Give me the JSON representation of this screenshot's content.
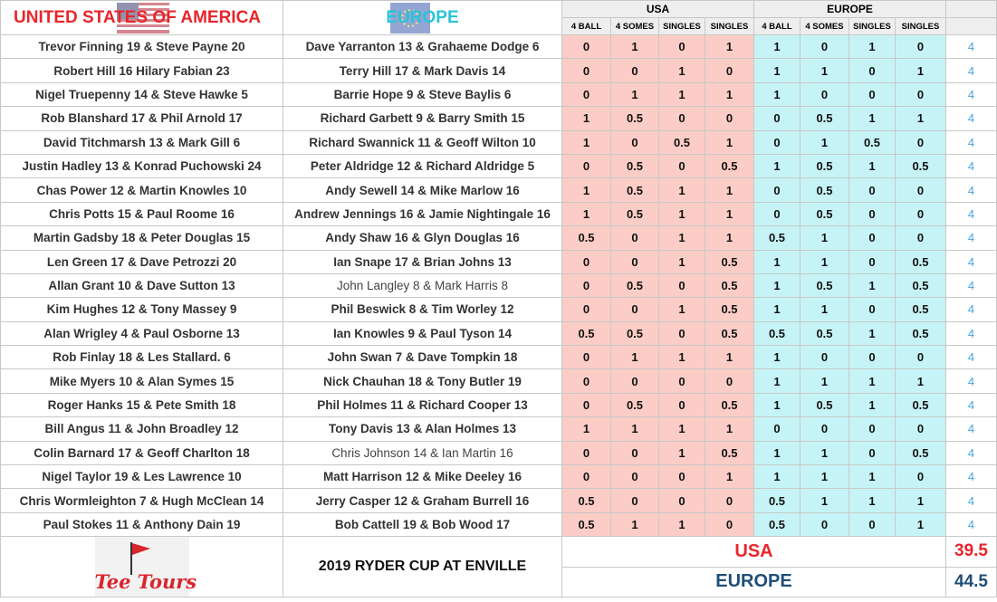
{
  "header": {
    "usa_title": "UNITED STATES OF AMERICA",
    "europe_title": "EUROPE",
    "usa_section": "USA",
    "europe_section": "EUROPE",
    "columns": [
      "4 BALL",
      "4 SOMES",
      "SINGLES",
      "SINGLES"
    ]
  },
  "colors": {
    "usa": "#e8262b",
    "europe_text": "#1f4e79",
    "usa_cell": "#fbcdc6",
    "europe_cell": "#c6f4f6",
    "total": "#4aa3df"
  },
  "icons": {
    "usa_flag": "usa-flag-icon",
    "europe_flag": "europe-flag-icon",
    "logo": "tee-tours-logo"
  },
  "rows": [
    {
      "usa": "Trevor Finning 19 & Steve Payne 20",
      "europe": "Dave Yarranton 13 & Grahaeme Dodge 6",
      "us": [
        "0",
        "1",
        "0",
        "1"
      ],
      "eu": [
        "1",
        "0",
        "1",
        "0"
      ],
      "total": "4"
    },
    {
      "usa": "Robert Hill 16 Hilary Fabian 23",
      "europe": "Terry Hill 17 & Mark Davis 14",
      "us": [
        "0",
        "0",
        "1",
        "0"
      ],
      "eu": [
        "1",
        "1",
        "0",
        "1"
      ],
      "total": "4"
    },
    {
      "usa": "Nigel Truepenny 14 & Steve Hawke 5",
      "europe": "Barrie Hope 9 & Steve Baylis 6",
      "us": [
        "0",
        "1",
        "1",
        "1"
      ],
      "eu": [
        "1",
        "0",
        "0",
        "0"
      ],
      "total": "4"
    },
    {
      "usa": "Rob Blanshard 17 & Phil Arnold 17",
      "europe": "Richard Garbett 9 & Barry Smith 15",
      "us": [
        "1",
        "0.5",
        "0",
        "0"
      ],
      "eu": [
        "0",
        "0.5",
        "1",
        "1"
      ],
      "total": "4"
    },
    {
      "usa": "David Titchmarsh 13 & Mark Gill 6",
      "europe": "Richard Swannick 11 & Geoff Wilton 10",
      "us": [
        "1",
        "0",
        "0.5",
        "1"
      ],
      "eu": [
        "0",
        "1",
        "0.5",
        "0"
      ],
      "total": "4"
    },
    {
      "usa": "Justin Hadley 13 & Konrad Puchowski 24",
      "europe": "Peter Aldridge 12 & Richard Aldridge 5",
      "us": [
        "0",
        "0.5",
        "0",
        "0.5"
      ],
      "eu": [
        "1",
        "0.5",
        "1",
        "0.5"
      ],
      "total": "4"
    },
    {
      "usa": "Chas Power 12 & Martin Knowles 10",
      "europe": "Andy Sewell 14 & Mike Marlow 16",
      "us": [
        "1",
        "0.5",
        "1",
        "1"
      ],
      "eu": [
        "0",
        "0.5",
        "0",
        "0"
      ],
      "total": "4"
    },
    {
      "usa": "Chris Potts 15 & Paul Roome 16",
      "europe": "Andrew Jennings 16 & Jamie Nightingale 16",
      "us": [
        "1",
        "0.5",
        "1",
        "1"
      ],
      "eu": [
        "0",
        "0.5",
        "0",
        "0"
      ],
      "total": "4"
    },
    {
      "usa": "Martin Gadsby 18 & Peter Douglas 15",
      "europe": "Andy Shaw 16 & Glyn Douglas 16",
      "us": [
        "0.5",
        "0",
        "1",
        "1"
      ],
      "eu": [
        "0.5",
        "1",
        "0",
        "0"
      ],
      "total": "4"
    },
    {
      "usa": "Len Green 17 & Dave Petrozzi 20",
      "europe": "Ian Snape 17 & Brian Johns 13",
      "us": [
        "0",
        "0",
        "1",
        "0.5"
      ],
      "eu": [
        "1",
        "1",
        "0",
        "0.5"
      ],
      "total": "4"
    },
    {
      "usa": "Allan Grant 10 & Dave Sutton 13",
      "europe": "John Langley 8 & Mark Harris 8",
      "us": [
        "0",
        "0.5",
        "0",
        "0.5"
      ],
      "eu": [
        "1",
        "0.5",
        "1",
        "0.5"
      ],
      "total": "4",
      "light": true
    },
    {
      "usa": "Kim Hughes 12 & Tony Massey 9",
      "europe": "Phil Beswick 8 & Tim Worley 12",
      "us": [
        "0",
        "0",
        "1",
        "0.5"
      ],
      "eu": [
        "1",
        "1",
        "0",
        "0.5"
      ],
      "total": "4"
    },
    {
      "usa": "Alan Wrigley 4 & Paul Osborne 13",
      "europe": "Ian Knowles 9 & Paul Tyson 14",
      "us": [
        "0.5",
        "0.5",
        "0",
        "0.5"
      ],
      "eu": [
        "0.5",
        "0.5",
        "1",
        "0.5"
      ],
      "total": "4"
    },
    {
      "usa": "Rob Finlay 18 & Les Stallard. 6",
      "europe": "John Swan 7 & Dave Tompkin 18",
      "us": [
        "0",
        "1",
        "1",
        "1"
      ],
      "eu": [
        "1",
        "0",
        "0",
        "0"
      ],
      "total": "4"
    },
    {
      "usa": "Mike Myers 10 & Alan Symes 15",
      "europe": "Nick Chauhan 18 & Tony Butler 19",
      "us": [
        "0",
        "0",
        "0",
        "0"
      ],
      "eu": [
        "1",
        "1",
        "1",
        "1"
      ],
      "total": "4"
    },
    {
      "usa": "Roger Hanks 15 & Pete Smith 18",
      "europe": "Phil Holmes 11 & Richard Cooper 13",
      "us": [
        "0",
        "0.5",
        "0",
        "0.5"
      ],
      "eu": [
        "1",
        "0.5",
        "1",
        "0.5"
      ],
      "total": "4"
    },
    {
      "usa": "Bill Angus 11 & John Broadley 12",
      "europe": "Tony Davis 13 & Alan Holmes 13",
      "us": [
        "1",
        "1",
        "1",
        "1"
      ],
      "eu": [
        "0",
        "0",
        "0",
        "0"
      ],
      "total": "4"
    },
    {
      "usa": "Colin Barnard 17 & Geoff Charlton 18",
      "europe": "Chris Johnson 14 & Ian Martin 16",
      "us": [
        "0",
        "0",
        "1",
        "0.5"
      ],
      "eu": [
        "1",
        "1",
        "0",
        "0.5"
      ],
      "total": "4",
      "light": true
    },
    {
      "usa": "Nigel Taylor 19 & Les Lawrence 10",
      "europe": "Matt Harrison 12 & Mike Deeley 16",
      "us": [
        "0",
        "0",
        "0",
        "1"
      ],
      "eu": [
        "1",
        "1",
        "1",
        "0"
      ],
      "total": "4"
    },
    {
      "usa": "Chris Wormleighton 7 & Hugh McClean 14",
      "europe": "Jerry Casper 12 & Graham Burrell 16",
      "us": [
        "0.5",
        "0",
        "0",
        "0"
      ],
      "eu": [
        "0.5",
        "1",
        "1",
        "1"
      ],
      "total": "4"
    },
    {
      "usa": "Paul Stokes 11 & Anthony Dain 19",
      "europe": "Bob Cattell 19 & Bob Wood 17",
      "us": [
        "0.5",
        "1",
        "1",
        "0"
      ],
      "eu": [
        "0.5",
        "0",
        "0",
        "1"
      ],
      "total": "4"
    }
  ],
  "footer": {
    "logo_text": "Tee Tours",
    "event_title": "2019 RYDER CUP AT ENVILLE",
    "usa_label": "USA",
    "usa_score": "39.5",
    "europe_label": "EUROPE",
    "europe_score": "44.5"
  }
}
